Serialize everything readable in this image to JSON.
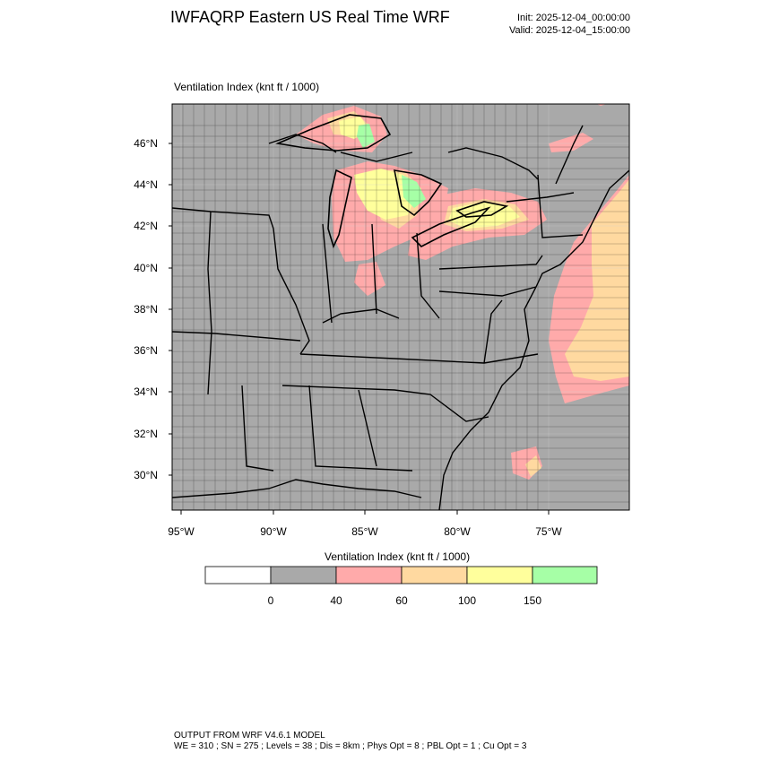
{
  "header": {
    "title": "IWFAQRP Eastern US Real Time WRF",
    "init": "Init: 2025-12-04_00:00:00",
    "valid": "Valid: 2025-12-04_15:00:00"
  },
  "map": {
    "field_label": "Ventilation Index   (knt ft / 1000)",
    "lat_labels": [
      "46°N",
      "44°N",
      "42°N",
      "40°N",
      "38°N",
      "36°N",
      "34°N",
      "32°N",
      "30°N"
    ],
    "lon_labels": [
      "95°W",
      "90°W",
      "85°W",
      "80°W",
      "75°W"
    ],
    "colors": {
      "land_water_base": "#a9a9a9",
      "class_40_60": "#ffaaaa",
      "class_60_100": "#ffd9a0",
      "class_100_150": "#ffff9c",
      "class_150_plus": "#a6ffa6",
      "boundaries": "#000000"
    }
  },
  "legend": {
    "title": "Ventilation Index  (knt ft / 1000)",
    "bins": [
      {
        "color": "#ffffff"
      },
      {
        "color": "#a9a9a9"
      },
      {
        "color": "#ffaaaa"
      },
      {
        "color": "#ffd9a0"
      },
      {
        "color": "#ffff9c"
      },
      {
        "color": "#a6ffa6"
      }
    ],
    "labels": [
      "0",
      "40",
      "60",
      "100",
      "150"
    ]
  },
  "footer": {
    "line1": "OUTPUT FROM WRF V4.6.1 MODEL",
    "line2": "WE = 310 ; SN = 275 ; Levels = 38 ; Dis = 8km ; Phys Opt = 8 ; PBL Opt = 1 ; Cu Opt = 3"
  }
}
